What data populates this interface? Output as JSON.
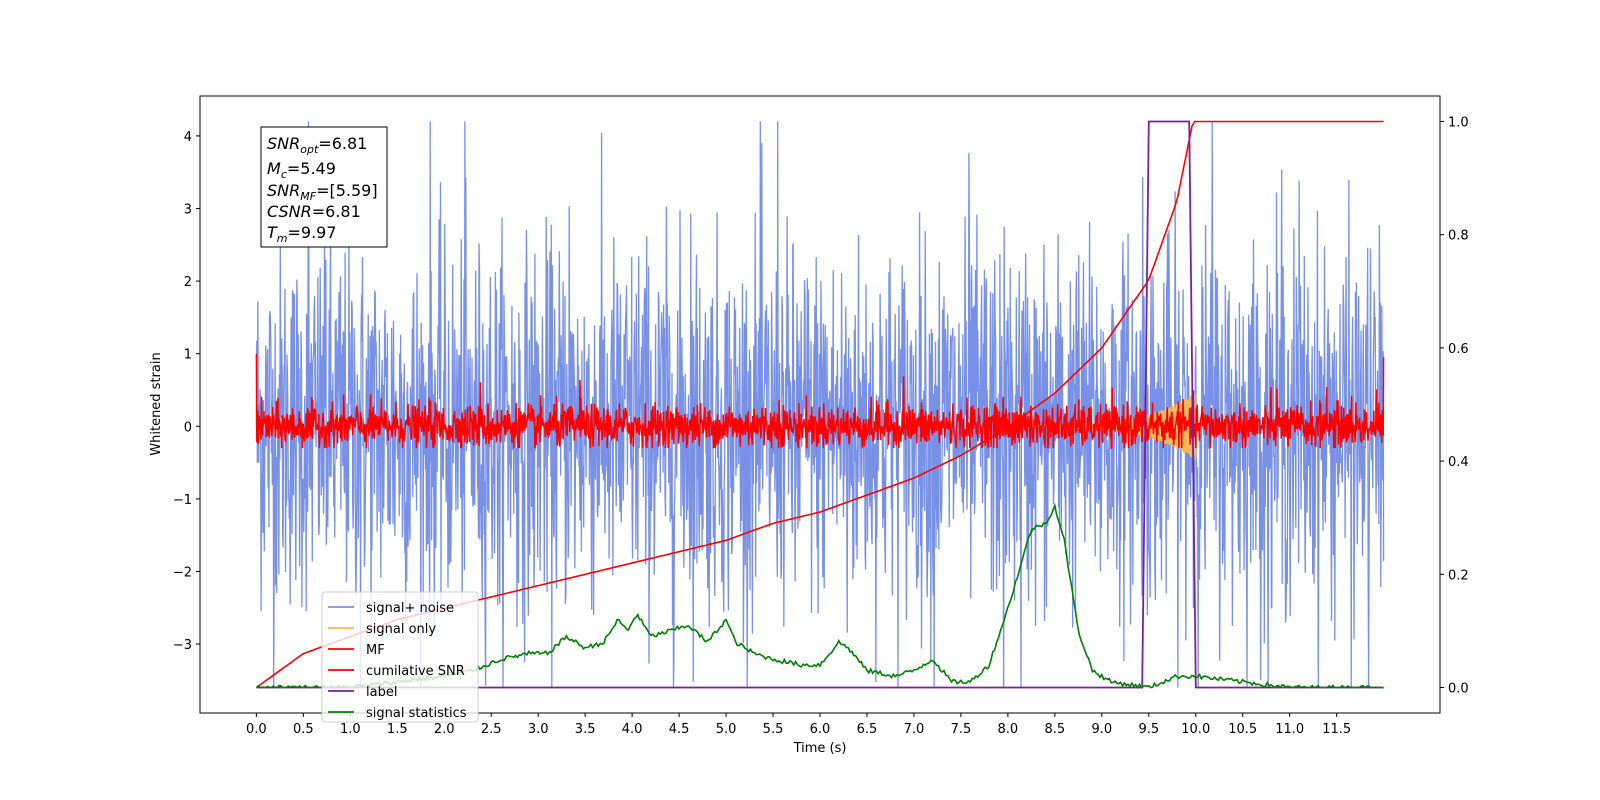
{
  "chart_data": {
    "type": "line",
    "xlabel": "Time (s)",
    "ylabel": "Whitened strain",
    "xlim": [
      -0.6,
      12.6
    ],
    "ylim": [
      -3.95,
      4.55
    ],
    "y2lim": [
      -0.045,
      1.045
    ],
    "xticks": [
      0.0,
      0.5,
      1.0,
      1.5,
      2.0,
      2.5,
      3.0,
      3.5,
      4.0,
      4.5,
      5.0,
      5.5,
      6.0,
      6.5,
      7.0,
      7.5,
      8.0,
      8.5,
      9.0,
      9.5,
      10.0,
      10.5,
      11.0,
      11.5
    ],
    "xtick_labels": [
      "0.0",
      "0.5",
      "1.0",
      "1.5",
      "2.0",
      "2.5",
      "3.0",
      "3.5",
      "4.0",
      "4.5",
      "5.0",
      "5.5",
      "6.0",
      "6.5",
      "7.0",
      "7.5",
      "8.0",
      "8.5",
      "9.0",
      "9.5",
      "10.0",
      "10.5",
      "11.0",
      "11.5"
    ],
    "yticks": [
      -3,
      -2,
      -1,
      0,
      1,
      2,
      3,
      4
    ],
    "ytick_labels": [
      "−3",
      "−2",
      "−1",
      "0",
      "1",
      "2",
      "3",
      "4"
    ],
    "y2ticks": [
      0.0,
      0.2,
      0.4,
      0.6,
      0.8,
      1.0
    ],
    "y2tick_labels": [
      "0.0",
      "0.2",
      "0.4",
      "0.6",
      "0.8",
      "1.0"
    ],
    "grid": false,
    "legend_position": "lower-left",
    "series": [
      {
        "name": "signal+ noise",
        "color": "#7891e6",
        "axis": "left",
        "x_range": [
          0.0,
          12.0
        ],
        "approx_amplitude": 1.3,
        "approx_min": -3.6,
        "approx_max": 4.2
      },
      {
        "name": "signal only",
        "color": "#f5b95a",
        "axis": "left",
        "chirp_start": 8.0,
        "chirp_end": 10.0,
        "approx_peak": 0.45
      },
      {
        "name": "MF",
        "color": "#ff0000",
        "axis": "left",
        "x_range": [
          0.0,
          12.0
        ],
        "approx_amplitude": 0.25,
        "approx_max": 0.7
      },
      {
        "name": "cumilative SNR",
        "color": "#ff0000",
        "axis": "right",
        "x": [
          0.0,
          0.5,
          1.0,
          1.5,
          2.0,
          2.5,
          3.0,
          3.5,
          4.0,
          4.5,
          5.0,
          5.5,
          6.0,
          6.5,
          7.0,
          7.5,
          8.0,
          8.5,
          9.0,
          9.5,
          9.8,
          9.97,
          10.0,
          12.0
        ],
        "values": [
          0.0,
          0.06,
          0.09,
          0.12,
          0.14,
          0.16,
          0.18,
          0.2,
          0.22,
          0.24,
          0.26,
          0.29,
          0.31,
          0.34,
          0.37,
          0.41,
          0.46,
          0.52,
          0.6,
          0.72,
          0.86,
          1.0,
          1.0,
          1.0
        ]
      },
      {
        "name": "label",
        "color": "#7b1fa2",
        "axis": "right",
        "x": [
          0.0,
          9.43,
          9.5,
          9.93,
          10.0,
          12.0
        ],
        "values": [
          0.0,
          0.0,
          1.0,
          1.0,
          0.0,
          0.0
        ]
      },
      {
        "name": "signal statistics",
        "color": "#008000",
        "axis": "right",
        "x": [
          0.0,
          0.5,
          1.0,
          1.5,
          2.0,
          2.3,
          2.6,
          2.9,
          3.1,
          3.3,
          3.5,
          3.7,
          3.85,
          3.95,
          4.05,
          4.2,
          4.4,
          4.6,
          4.8,
          5.0,
          5.1,
          5.3,
          5.5,
          5.8,
          6.0,
          6.2,
          6.3,
          6.5,
          6.8,
          7.0,
          7.2,
          7.4,
          7.6,
          7.8,
          8.0,
          8.25,
          8.4,
          8.5,
          8.6,
          8.75,
          8.9,
          9.1,
          9.5,
          9.8,
          10.0,
          10.5,
          11.0,
          12.0
        ],
        "values": [
          0.0,
          0.0,
          0.0,
          0.01,
          0.02,
          0.03,
          0.05,
          0.06,
          0.06,
          0.09,
          0.07,
          0.08,
          0.12,
          0.1,
          0.13,
          0.09,
          0.1,
          0.11,
          0.08,
          0.12,
          0.08,
          0.06,
          0.05,
          0.04,
          0.04,
          0.08,
          0.07,
          0.03,
          0.02,
          0.03,
          0.05,
          0.01,
          0.01,
          0.04,
          0.14,
          0.28,
          0.29,
          0.32,
          0.26,
          0.1,
          0.03,
          0.01,
          0.0,
          0.02,
          0.02,
          0.01,
          0.0,
          0.0
        ]
      }
    ],
    "annotations": {
      "snr_opt": "6.81",
      "mc": "5.49",
      "snr_mf": "[5.59]",
      "csnr": "6.81",
      "tm": "9.97"
    }
  },
  "info_box": {
    "line1_main": "SNR",
    "line1_sub": "opt",
    "line1_val": "=6.81",
    "line2_main": "M",
    "line2_sub": "c",
    "line2_val": "=5.49",
    "line3_main": "SNR",
    "line3_sub": "MF",
    "line3_val": "=[5.59]",
    "line4_main": "CSNR",
    "line4_val": "=6.81",
    "line5_main": "T",
    "line5_sub": "m",
    "line5_val": "=9.97"
  }
}
